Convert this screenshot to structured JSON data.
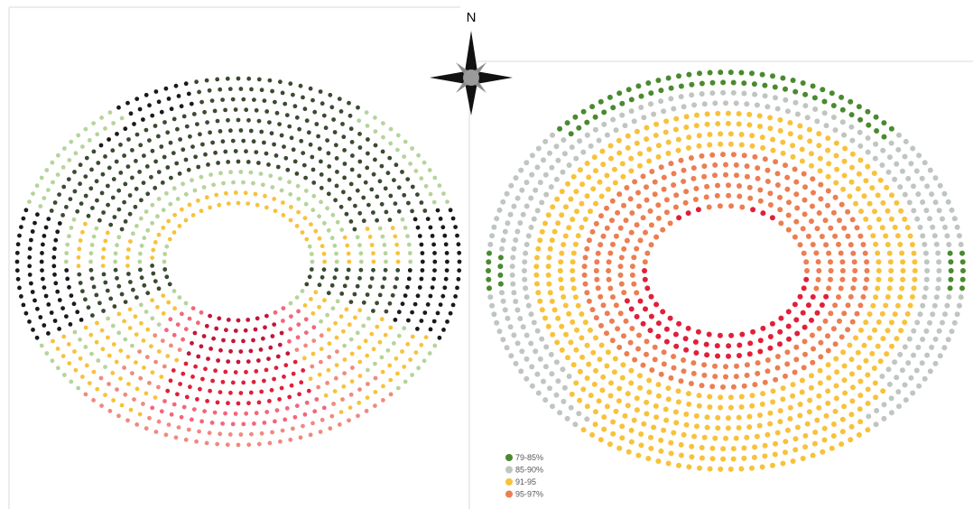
{
  "compass": {
    "label": "N",
    "icon": "compass-rose-icon"
  },
  "colors": {
    "dark": "#1a1a1a",
    "darkgreen": "#3b4a32",
    "green": "#4a8a2f",
    "lightgreen": "#b5d49b",
    "gray": "#bfc5c0",
    "yellow": "#f7c23b",
    "salmon": "#f08a7e",
    "orange": "#ec7e52",
    "pink": "#f4667a",
    "red": "#e0203a",
    "crimson": "#c4163a"
  },
  "chart_data": [
    {
      "type": "scatter",
      "title": "",
      "description_key": "left-stadium",
      "rings": 13,
      "series": []
    },
    {
      "type": "scatter",
      "title": "",
      "rings": 14,
      "legend": {
        "placement": "bottom-left",
        "entries": [
          {
            "label": "79-85%",
            "color": "#4a8a2f"
          },
          {
            "label": "85-90%",
            "color": "#bfc5c0"
          },
          {
            "label": "91-95",
            "color": "#f7c23b"
          },
          {
            "label": "95-97%",
            "color": "#ec7e52"
          }
        ]
      }
    }
  ]
}
